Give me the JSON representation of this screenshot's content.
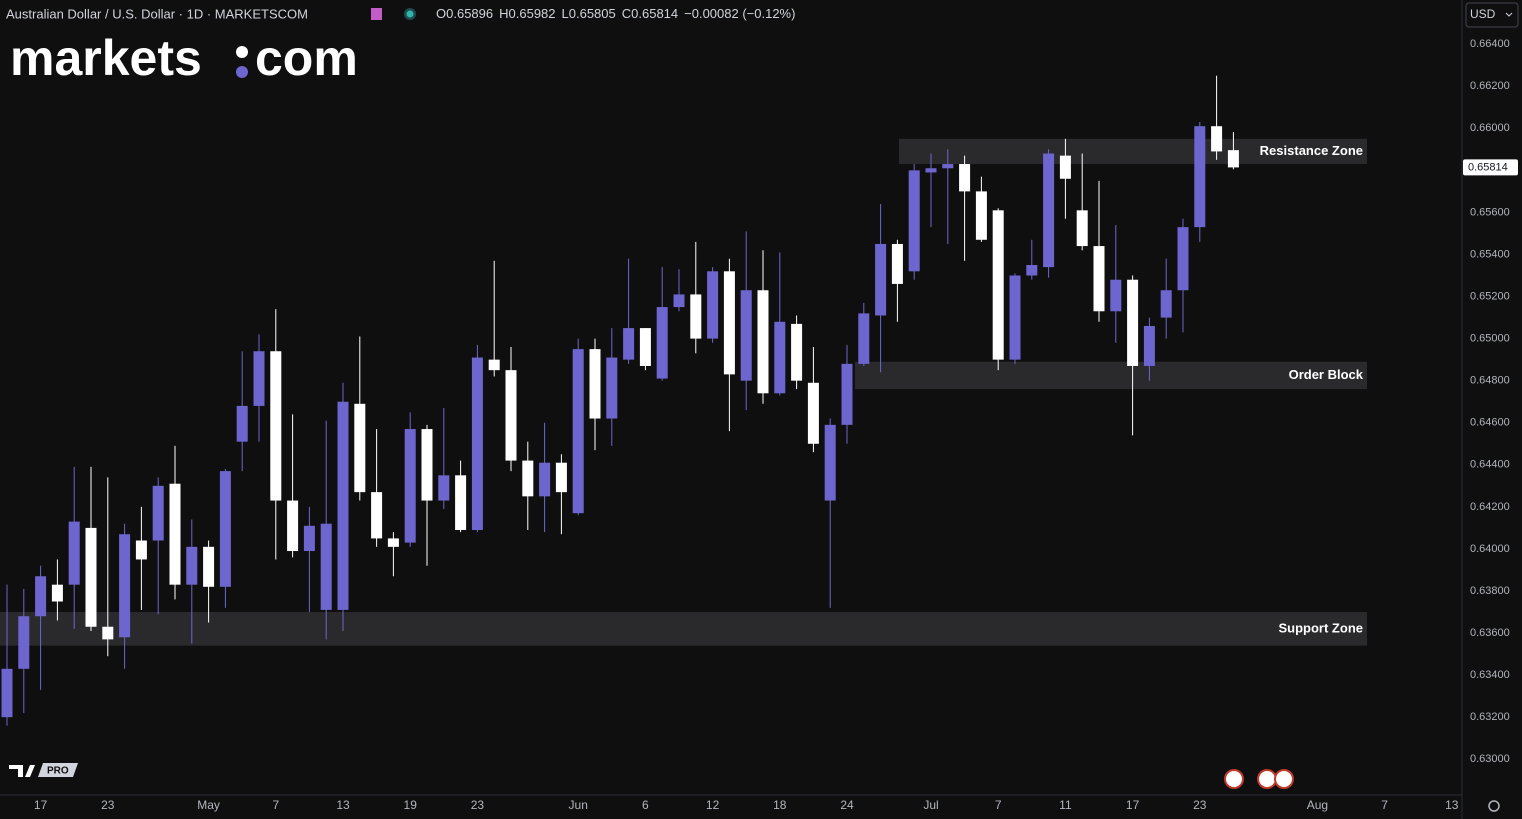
{
  "header": {
    "symbol": "Australian Dollar / U.S. Dollar · 1D · MARKETSCOM",
    "ohlc_keys": [
      "O",
      "H",
      "L",
      "C"
    ],
    "change": "−0.00082 (−0.12%)"
  },
  "logo": [
    "markets",
    "com"
  ],
  "currency": "USD",
  "watermark": "PRO",
  "chart_data": {
    "type": "candlestick",
    "up_color": "#6e66cf",
    "down_color": "#ffffff",
    "grid": false,
    "open": [
      0.632,
      0.6343,
      0.6368,
      0.6383,
      0.6383,
      0.641,
      0.6363,
      0.6358,
      0.6404,
      0.6404,
      0.6431,
      0.6383,
      0.6401,
      0.6382,
      0.6451,
      0.6468,
      0.6494,
      0.6423,
      0.6399,
      0.6371,
      0.6371,
      0.6469,
      0.6427,
      0.6405,
      0.6403,
      0.6457,
      0.6423,
      0.6435,
      0.6409,
      0.649,
      0.6485,
      0.6442,
      0.6425,
      0.6441,
      0.6417,
      0.6495,
      0.6462,
      0.649,
      0.6505,
      0.6481,
      0.6515,
      0.6521,
      0.65,
      0.6532,
      0.648,
      0.6523,
      0.6474,
      0.6507,
      0.6479,
      0.6423,
      0.6459,
      0.6488,
      0.6511,
      0.6545,
      0.6532,
      0.6579,
      0.6581,
      0.6583,
      0.657,
      0.6561,
      0.649,
      0.653,
      0.6534,
      0.6587,
      0.6561,
      0.6544,
      0.6513,
      0.6528,
      0.6487,
      0.651,
      0.6523,
      0.6553,
      0.6601,
      0.65896
    ],
    "high": [
      0.6383,
      0.6381,
      0.6392,
      0.6395,
      0.6439,
      0.6439,
      0.6434,
      0.6412,
      0.642,
      0.6434,
      0.6449,
      0.6414,
      0.6404,
      0.6438,
      0.6494,
      0.6502,
      0.6514,
      0.6464,
      0.642,
      0.6461,
      0.6479,
      0.6501,
      0.6457,
      0.6408,
      0.6465,
      0.6459,
      0.6467,
      0.6442,
      0.6497,
      0.6537,
      0.6496,
      0.6451,
      0.646,
      0.6445,
      0.65,
      0.65,
      0.6505,
      0.6538,
      0.6505,
      0.6534,
      0.6533,
      0.6546,
      0.6534,
      0.6538,
      0.6551,
      0.6542,
      0.6541,
      0.6511,
      0.6496,
      0.6462,
      0.6497,
      0.6517,
      0.6564,
      0.6547,
      0.6583,
      0.6588,
      0.659,
      0.6587,
      0.6577,
      0.6562,
      0.6531,
      0.6547,
      0.659,
      0.6595,
      0.6588,
      0.6575,
      0.6554,
      0.653,
      0.651,
      0.6538,
      0.6557,
      0.6603,
      0.6625,
      0.65982
    ],
    "low": [
      0.6316,
      0.6322,
      0.6333,
      0.6366,
      0.6362,
      0.6361,
      0.6349,
      0.6343,
      0.6371,
      0.6369,
      0.6376,
      0.6355,
      0.6365,
      0.6372,
      0.6437,
      0.6451,
      0.6395,
      0.6396,
      0.637,
      0.6357,
      0.6361,
      0.6423,
      0.6401,
      0.6387,
      0.6401,
      0.6392,
      0.6419,
      0.6408,
      0.6408,
      0.6482,
      0.6437,
      0.6409,
      0.6408,
      0.6407,
      0.6416,
      0.6447,
      0.6449,
      0.6488,
      0.6485,
      0.648,
      0.6513,
      0.6493,
      0.6498,
      0.6456,
      0.6466,
      0.6469,
      0.6473,
      0.6476,
      0.6446,
      0.6372,
      0.645,
      0.6487,
      0.6484,
      0.6508,
      0.6528,
      0.6553,
      0.6545,
      0.6537,
      0.6546,
      0.6485,
      0.6488,
      0.6528,
      0.6529,
      0.6557,
      0.6542,
      0.6508,
      0.6498,
      0.6454,
      0.648,
      0.65,
      0.6503,
      0.6546,
      0.6585,
      0.65805
    ],
    "close": [
      0.6343,
      0.6368,
      0.6387,
      0.6375,
      0.6413,
      0.6363,
      0.6357,
      0.6407,
      0.6395,
      0.643,
      0.6383,
      0.6401,
      0.6382,
      0.6437,
      0.6468,
      0.6494,
      0.6423,
      0.6399,
      0.6411,
      0.6412,
      0.647,
      0.6427,
      0.6405,
      0.6401,
      0.6457,
      0.6423,
      0.6435,
      0.6409,
      0.6491,
      0.6485,
      0.6442,
      0.6425,
      0.6441,
      0.6427,
      0.6495,
      0.6462,
      0.6491,
      0.6505,
      0.6487,
      0.6515,
      0.6521,
      0.65,
      0.6532,
      0.6483,
      0.6523,
      0.6474,
      0.6508,
      0.648,
      0.645,
      0.6459,
      0.6488,
      0.6512,
      0.6545,
      0.6526,
      0.658,
      0.6581,
      0.6583,
      0.657,
      0.6547,
      0.649,
      0.653,
      0.6535,
      0.6588,
      0.6576,
      0.6544,
      0.6513,
      0.6528,
      0.6487,
      0.6506,
      0.6523,
      0.6553,
      0.6601,
      0.6589,
      0.65814
    ],
    "ylim": [
      0.6283,
      0.6661
    ],
    "yticks": [
      {
        "value": 0.664,
        "label": "0.66400"
      },
      {
        "value": 0.662,
        "label": "0.66200"
      },
      {
        "value": 0.66,
        "label": "0.66000"
      },
      {
        "value": 0.658,
        "label": "0.65800"
      },
      {
        "value": 0.656,
        "label": "0.65600"
      },
      {
        "value": 0.654,
        "label": "0.65400"
      },
      {
        "value": 0.652,
        "label": "0.65200"
      },
      {
        "value": 0.65,
        "label": "0.65000"
      },
      {
        "value": 0.648,
        "label": "0.64800"
      },
      {
        "value": 0.646,
        "label": "0.64600"
      },
      {
        "value": 0.644,
        "label": "0.64400"
      },
      {
        "value": 0.642,
        "label": "0.64200"
      },
      {
        "value": 0.64,
        "label": "0.64000"
      },
      {
        "value": 0.638,
        "label": "0.63800"
      },
      {
        "value": 0.636,
        "label": "0.63600"
      },
      {
        "value": 0.634,
        "label": "0.63400"
      },
      {
        "value": 0.632,
        "label": "0.63200"
      },
      {
        "value": 0.63,
        "label": "0.63000"
      }
    ],
    "xticks": [
      {
        "value": 2,
        "label": "17"
      },
      {
        "value": 6,
        "label": "23"
      },
      {
        "value": 12,
        "label": "May"
      },
      {
        "value": 16,
        "label": "7"
      },
      {
        "value": 20,
        "label": "13"
      },
      {
        "value": 24,
        "label": "19"
      },
      {
        "value": 28,
        "label": "23"
      },
      {
        "value": 34,
        "label": "Jun"
      },
      {
        "value": 38,
        "label": "6"
      },
      {
        "value": 42,
        "label": "12"
      },
      {
        "value": 46,
        "label": "18"
      },
      {
        "value": 50,
        "label": "24"
      },
      {
        "value": 55,
        "label": "Jul"
      },
      {
        "value": 59,
        "label": "7"
      },
      {
        "value": 63,
        "label": "11"
      },
      {
        "value": 67,
        "label": "17"
      },
      {
        "value": 71,
        "label": "23"
      },
      {
        "value": 78,
        "label": "Aug"
      },
      {
        "value": 82,
        "label": "7"
      },
      {
        "value": 86,
        "label": "13"
      }
    ],
    "zones": [
      {
        "label": "Resistance Zone",
        "top": 0.6595,
        "bottom": 0.6583
      },
      {
        "label": "Order Block",
        "top": 0.6489,
        "bottom": 0.6476
      },
      {
        "label": "Support Zone",
        "top": 0.637,
        "bottom": 0.6354
      }
    ]
  }
}
